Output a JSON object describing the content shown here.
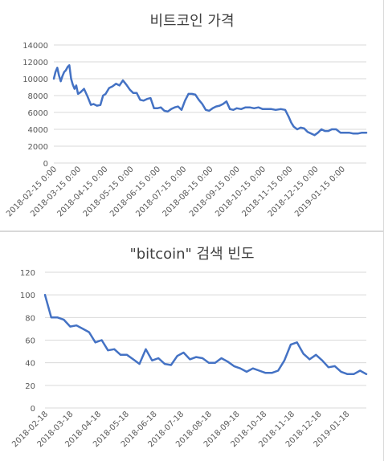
{
  "chart_data": [
    {
      "type": "line",
      "title": "비트코인 가격",
      "xlabel": "",
      "ylabel": "",
      "ylim": [
        0,
        14000
      ],
      "yticks": [
        0,
        2000,
        4000,
        6000,
        8000,
        10000,
        12000,
        14000
      ],
      "xlim": [
        "2018-02-15",
        "2019-02-12"
      ],
      "xtick_labels": [
        "2018-02-15 0:00",
        "2018-03-15 0:00",
        "2018-04-15 0:00",
        "2018-05-15 0:00",
        "2018-06-15 0:00",
        "2018-07-15 0:00",
        "2018-08-15 0:00",
        "2018-09-15 0:00",
        "2018-10-15 0:00",
        "2018-11-15 0:00",
        "2018-12-15 0:00",
        "2019-01-15 0:00"
      ],
      "xtick_dates": [
        "2018-02-15",
        "2018-03-15",
        "2018-04-15",
        "2018-05-15",
        "2018-06-15",
        "2018-07-15",
        "2018-08-15",
        "2018-09-15",
        "2018-10-15",
        "2018-11-15",
        "2018-12-15",
        "2019-01-15"
      ],
      "grid": "horizontal",
      "line_color": "#4472c4",
      "series": [
        {
          "x": [
            "2018-02-15",
            "2018-02-17",
            "2018-02-19",
            "2018-02-21",
            "2018-02-23",
            "2018-02-25",
            "2018-02-27",
            "2018-03-01",
            "2018-03-03",
            "2018-03-05",
            "2018-03-07",
            "2018-03-09",
            "2018-03-11",
            "2018-03-13",
            "2018-03-15",
            "2018-03-18",
            "2018-03-22",
            "2018-03-26",
            "2018-03-30",
            "2018-04-02",
            "2018-04-06",
            "2018-04-10",
            "2018-04-13",
            "2018-04-16",
            "2018-04-20",
            "2018-04-24",
            "2018-04-28",
            "2018-05-02",
            "2018-05-06",
            "2018-05-10",
            "2018-05-14",
            "2018-05-18",
            "2018-05-22",
            "2018-05-26",
            "2018-05-30",
            "2018-06-03",
            "2018-06-07",
            "2018-06-11",
            "2018-06-15",
            "2018-06-19",
            "2018-06-23",
            "2018-06-27",
            "2018-07-01",
            "2018-07-05",
            "2018-07-09",
            "2018-07-13",
            "2018-07-17",
            "2018-07-21",
            "2018-07-25",
            "2018-07-29",
            "2018-08-02",
            "2018-08-06",
            "2018-08-10",
            "2018-08-14",
            "2018-08-18",
            "2018-08-22",
            "2018-08-26",
            "2018-08-30",
            "2018-09-03",
            "2018-09-07",
            "2018-09-11",
            "2018-09-15",
            "2018-09-20",
            "2018-09-25",
            "2018-09-30",
            "2018-10-05",
            "2018-10-10",
            "2018-10-15",
            "2018-10-20",
            "2018-10-25",
            "2018-10-30",
            "2018-11-05",
            "2018-11-10",
            "2018-11-14",
            "2018-11-17",
            "2018-11-20",
            "2018-11-24",
            "2018-11-28",
            "2018-12-02",
            "2018-12-06",
            "2018-12-10",
            "2018-12-14",
            "2018-12-18",
            "2018-12-22",
            "2018-12-26",
            "2018-12-30",
            "2019-01-03",
            "2019-01-08",
            "2019-01-13",
            "2019-01-18",
            "2019-01-23",
            "2019-01-28",
            "2019-02-02",
            "2019-02-07",
            "2019-02-12"
          ],
          "values": [
            10000,
            10800,
            11300,
            10400,
            9700,
            10300,
            10800,
            11000,
            11400,
            11600,
            10000,
            9300,
            8800,
            9200,
            8200,
            8400,
            8800,
            7900,
            6900,
            7000,
            6800,
            6900,
            8000,
            8200,
            8900,
            9100,
            9400,
            9200,
            9800,
            9300,
            8700,
            8300,
            8300,
            7500,
            7400,
            7600,
            7700,
            6500,
            6500,
            6600,
            6200,
            6100,
            6400,
            6600,
            6700,
            6300,
            7400,
            8200,
            8200,
            8100,
            7500,
            7000,
            6300,
            6200,
            6500,
            6700,
            6800,
            7000,
            7300,
            6400,
            6300,
            6500,
            6400,
            6600,
            6600,
            6500,
            6600,
            6400,
            6400,
            6400,
            6300,
            6400,
            6300,
            5500,
            4800,
            4300,
            4000,
            4200,
            4100,
            3700,
            3500,
            3300,
            3600,
            4000,
            3800,
            3800,
            4000,
            4000,
            3600,
            3600,
            3600,
            3500,
            3500,
            3600,
            3600
          ]
        }
      ]
    },
    {
      "type": "line",
      "title": "\"bitcoin\" 검색 빈도",
      "xlabel": "",
      "ylabel": "",
      "ylim": [
        0,
        120
      ],
      "yticks": [
        0,
        20,
        40,
        60,
        80,
        100,
        120
      ],
      "grid": "horizontal",
      "line_color": "#4472c4",
      "categories": [
        "2018-02-18",
        "2018-02-25",
        "2018-03-04",
        "2018-03-11",
        "2018-03-18",
        "2018-03-25",
        "2018-04-01",
        "2018-04-08",
        "2018-04-15",
        "2018-04-22",
        "2018-04-29",
        "2018-05-06",
        "2018-05-13",
        "2018-05-20",
        "2018-05-27",
        "2018-06-03",
        "2018-06-10",
        "2018-06-17",
        "2018-06-24",
        "2018-07-01",
        "2018-07-08",
        "2018-07-15",
        "2018-07-22",
        "2018-07-29",
        "2018-08-05",
        "2018-08-12",
        "2018-08-19",
        "2018-08-26",
        "2018-09-02",
        "2018-09-09",
        "2018-09-16",
        "2018-09-23",
        "2018-09-30",
        "2018-10-07",
        "2018-10-14",
        "2018-10-21",
        "2018-10-28",
        "2018-11-04",
        "2018-11-11",
        "2018-11-18",
        "2018-11-25",
        "2018-12-02",
        "2018-12-09",
        "2018-12-16",
        "2018-12-23",
        "2018-12-30",
        "2019-01-06",
        "2019-01-13",
        "2019-01-20",
        "2019-01-27",
        "2019-02-03",
        "2019-02-10"
      ],
      "xtick_labels": [
        "2018-02-18",
        "2018-03-18",
        "2018-04-18",
        "2018-05-18",
        "2018-06-18",
        "2018-07-18",
        "2018-08-18",
        "2018-09-18",
        "2018-10-18",
        "2018-11-18",
        "2018-12-18",
        "2019-01-18"
      ],
      "xtick_positions": [
        0,
        4,
        8.43,
        12.86,
        17.29,
        21.57,
        26,
        30.43,
        34.71,
        39.14,
        43.43,
        47.86
      ],
      "series": [
        {
          "values": [
            100,
            80,
            80,
            78,
            72,
            73,
            70,
            67,
            58,
            60,
            51,
            52,
            47,
            47,
            43,
            39,
            52,
            42,
            44,
            39,
            38,
            46,
            49,
            43,
            45,
            44,
            40,
            40,
            44,
            41,
            37,
            35,
            32,
            35,
            33,
            31,
            31,
            33,
            42,
            56,
            58,
            48,
            43,
            47,
            42,
            36,
            37,
            32,
            30,
            30,
            33,
            30
          ]
        }
      ]
    }
  ]
}
